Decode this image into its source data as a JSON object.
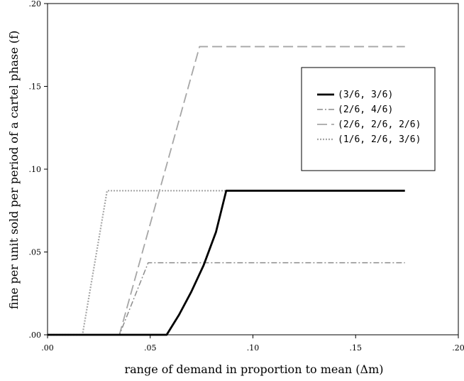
{
  "chart_data": {
    "type": "line",
    "title": "",
    "xlabel": "range of demand in proportion to mean (Δm)",
    "ylabel": "fine per unit sold per period of a cartel phase (f)",
    "xlim": [
      0,
      0.2
    ],
    "ylim": [
      0,
      0.2
    ],
    "x_ticks": [
      0,
      0.05,
      0.1,
      0.15,
      0.2
    ],
    "x_tick_labels": [
      ".00",
      ".05",
      ".10",
      ".15",
      ".20"
    ],
    "y_ticks": [
      0,
      0.05,
      0.1,
      0.15,
      0.2
    ],
    "y_tick_labels": [
      ".00",
      ".05",
      ".10",
      ".15",
      ".20"
    ],
    "grid": false,
    "legend_position": "top-right",
    "series": [
      {
        "name": "(3/6, 3/6)",
        "color": "#000000",
        "style": "solid",
        "points": [
          [
            0,
            0
          ],
          [
            0.058,
            0
          ],
          [
            0.064,
            0.012
          ],
          [
            0.07,
            0.026
          ],
          [
            0.076,
            0.042
          ],
          [
            0.082,
            0.062
          ],
          [
            0.087,
            0.087
          ],
          [
            0.174,
            0.087
          ]
        ]
      },
      {
        "name": "(2/6, 4/6)",
        "color": "#8c8c8c",
        "style": "dash-dot",
        "points": [
          [
            0,
            0
          ],
          [
            0.035,
            0
          ],
          [
            0.049,
            0.0435
          ],
          [
            0.174,
            0.0435
          ]
        ]
      },
      {
        "name": "(2/6, 2/6, 2/6)",
        "color": "#a6a6a6",
        "style": "long-dash",
        "points": [
          [
            0,
            0
          ],
          [
            0.035,
            0
          ],
          [
            0.074,
            0.174
          ],
          [
            0.174,
            0.174
          ]
        ]
      },
      {
        "name": "(1/6, 2/6, 3/6)",
        "color": "#a6a6a6",
        "style": "dotted",
        "points": [
          [
            0,
            0
          ],
          [
            0.017,
            0
          ],
          [
            0.029,
            0.087
          ],
          [
            0.174,
            0.087
          ]
        ]
      }
    ]
  }
}
